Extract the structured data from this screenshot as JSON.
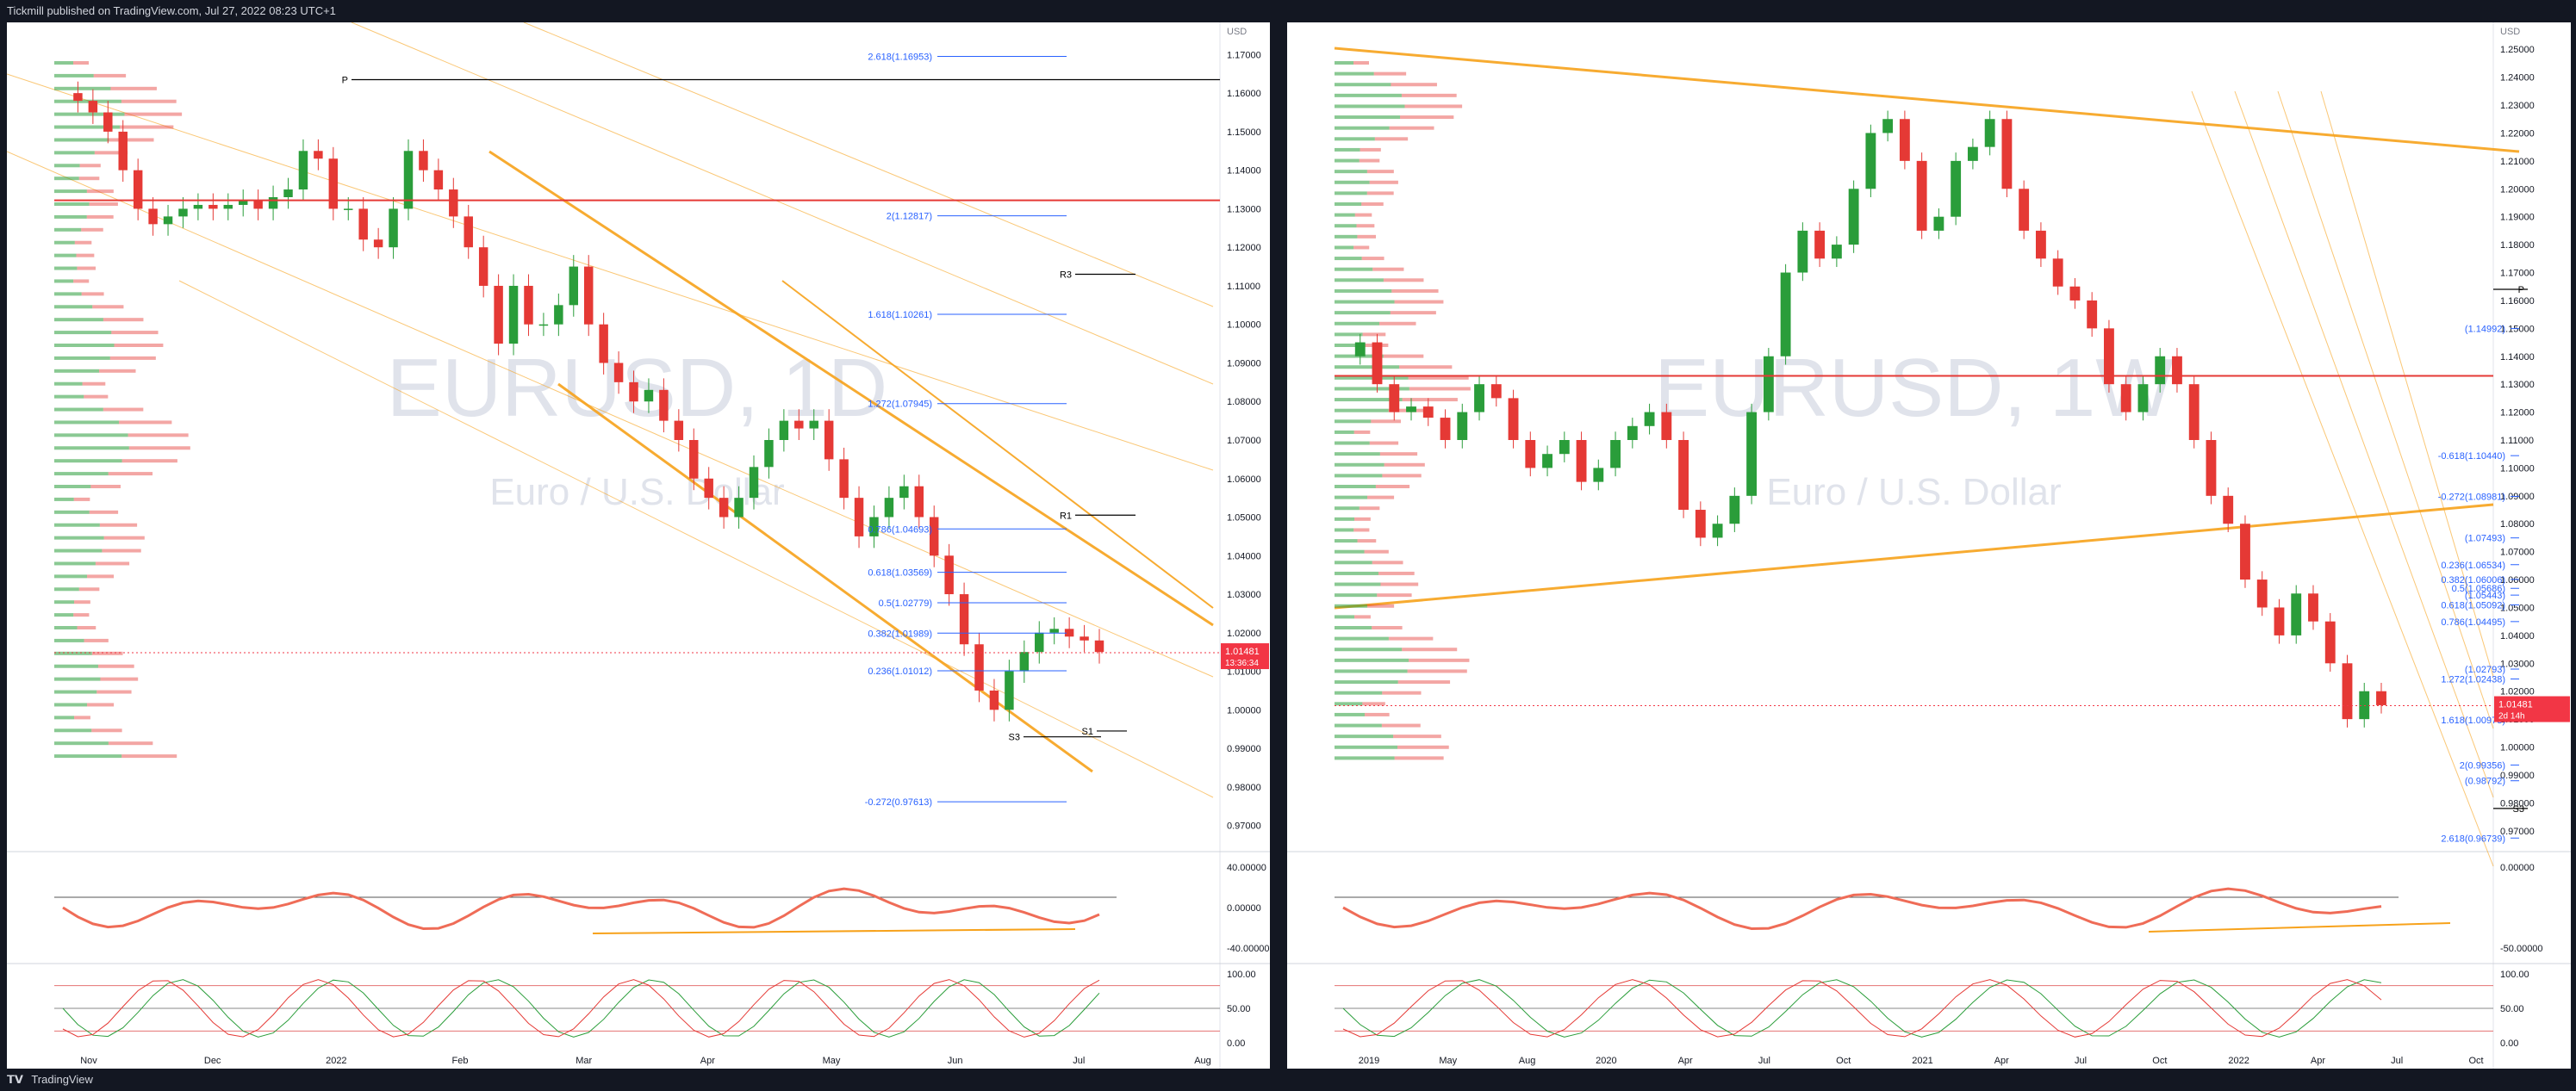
{
  "header": {
    "publish_text": "Tickmill published on TradingView.com, Jul 27, 2022 08:23 UTC+1"
  },
  "footer": {
    "logo_text": "TradingView"
  },
  "colors": {
    "frame": "#131722",
    "bull": "#2a9d3a",
    "bear": "#e53935",
    "fib_line": "#2962ff",
    "channel": "#f7a21b",
    "pivot": "#000000",
    "price_tag": "#f23645",
    "resistance_line": "#e53935"
  },
  "chart_data": [
    {
      "type": "line",
      "title": "EURUSD, 1D",
      "subtitle": "Euro / U.S. Dollar",
      "currency": "USD",
      "price_axis": [
        "1.17000",
        "1.16000",
        "1.15000",
        "1.14000",
        "1.13000",
        "1.12000",
        "1.11000",
        "1.10000",
        "1.09000",
        "1.08000",
        "1.07000",
        "1.06000",
        "1.05000",
        "1.04000",
        "1.03000",
        "1.02000",
        "1.01000",
        "1.00000",
        "0.99000",
        "0.98000",
        "0.97000"
      ],
      "ylim": [
        0.965,
        1.175
      ],
      "time_axis": [
        "Nov",
        "Dec",
        "2022",
        "Feb",
        "Mar",
        "Apr",
        "May",
        "Jun",
        "Jul",
        "Aug"
      ],
      "series": [
        {
          "values": [
            1.16,
            1.158,
            1.155,
            1.15,
            1.14,
            1.13,
            1.126,
            1.128,
            1.13,
            1.131,
            1.13,
            1.131,
            1.132,
            1.13,
            1.133,
            1.135,
            1.145,
            1.143,
            1.13,
            1.13,
            1.122,
            1.12,
            1.13,
            1.145,
            1.14,
            1.135,
            1.128,
            1.12,
            1.11,
            1.095,
            1.11,
            1.1,
            1.1,
            1.105,
            1.115,
            1.1,
            1.09,
            1.085,
            1.08,
            1.083,
            1.075,
            1.07,
            1.06,
            1.055,
            1.05,
            1.055,
            1.063,
            1.07,
            1.075,
            1.073,
            1.075,
            1.065,
            1.055,
            1.045,
            1.05,
            1.055,
            1.058,
            1.05,
            1.04,
            1.03,
            1.017,
            1.005,
            1.0,
            1.01,
            1.015,
            1.02,
            1.021,
            1.019,
            1.018,
            1.015
          ]
        }
      ],
      "current_price": "1.01481",
      "countdown": "13:36:34",
      "fib_levels": [
        {
          "label": "2.618(1.16953)",
          "value": 1.16953
        },
        {
          "label": "2(1.12817)",
          "value": 1.12817
        },
        {
          "label": "1.618(1.10261)",
          "value": 1.10261
        },
        {
          "label": "1.272(1.07945)",
          "value": 1.07945
        },
        {
          "label": "0.786(1.04693)",
          "value": 1.04693
        },
        {
          "label": "0.618(1.03569)",
          "value": 1.03569
        },
        {
          "label": "0.5(1.02779)",
          "value": 1.02779
        },
        {
          "label": "0.382(1.01989)",
          "value": 1.01989
        },
        {
          "label": "0.236(1.01012)",
          "value": 1.01012
        },
        {
          "label": "-0.272(0.97613)",
          "value": 0.97613
        }
      ],
      "pivots": [
        {
          "label": "P",
          "value": 1.1635
        },
        {
          "label": "R3",
          "value": 1.113
        },
        {
          "label": "R1",
          "value": 1.0505
        },
        {
          "label": "S3",
          "value": 0.993
        },
        {
          "label": "S1",
          "value": 0.9945
        }
      ],
      "rsi_axis": [
        "40.00000",
        "0.00000",
        "-40.00000"
      ],
      "stoch_axis": [
        "100.00",
        "50.00",
        "0.00"
      ]
    },
    {
      "type": "line",
      "title": "EURUSD, 1W",
      "subtitle": "Euro / U.S. Dollar",
      "currency": "USD",
      "price_axis": [
        "1.25000",
        "1.24000",
        "1.23000",
        "1.22000",
        "1.21000",
        "1.20000",
        "1.19000",
        "1.18000",
        "1.17000",
        "1.16000",
        "1.15000",
        "1.14000",
        "1.13000",
        "1.12000",
        "1.11000",
        "1.10000",
        "1.09000",
        "1.08000",
        "1.07000",
        "1.06000",
        "1.05000",
        "1.04000",
        "1.03000",
        "1.02000",
        "1.01000",
        "1.00000",
        "0.99000",
        "0.98000",
        "0.97000"
      ],
      "ylim": [
        0.965,
        1.255
      ],
      "time_axis": [
        "2019",
        "May",
        "Aug",
        "2020",
        "Apr",
        "Jul",
        "Oct",
        "2021",
        "Apr",
        "Jul",
        "Oct",
        "2022",
        "Apr",
        "Jul",
        "Oct"
      ],
      "series": [
        {
          "values": [
            1.14,
            1.145,
            1.13,
            1.12,
            1.122,
            1.118,
            1.11,
            1.12,
            1.13,
            1.125,
            1.11,
            1.1,
            1.105,
            1.11,
            1.095,
            1.1,
            1.11,
            1.115,
            1.12,
            1.11,
            1.085,
            1.075,
            1.08,
            1.09,
            1.12,
            1.14,
            1.17,
            1.185,
            1.175,
            1.18,
            1.2,
            1.22,
            1.225,
            1.21,
            1.185,
            1.19,
            1.21,
            1.215,
            1.225,
            1.2,
            1.185,
            1.175,
            1.165,
            1.16,
            1.15,
            1.13,
            1.12,
            1.13,
            1.14,
            1.13,
            1.11,
            1.09,
            1.08,
            1.06,
            1.05,
            1.04,
            1.055,
            1.045,
            1.03,
            1.01,
            1.02,
            1.015
          ]
        }
      ],
      "current_price": "1.01481",
      "countdown": "2d 14h",
      "fib_levels": [
        {
          "label": "(1.14992)",
          "value": 1.14992
        },
        {
          "label": "-0.618(1.10440)",
          "value": 1.1044
        },
        {
          "label": "-0.272(1.08981)",
          "value": 1.08981
        },
        {
          "label": "(1.07493)",
          "value": 1.07493
        },
        {
          "label": "0.236(1.06534)",
          "value": 1.06534
        },
        {
          "label": "0.382(1.06006)",
          "value": 1.06006
        },
        {
          "label": "0.5(1.05686)",
          "value": 1.05686
        },
        {
          "label": "(1.05443)",
          "value": 1.05443
        },
        {
          "label": "0.618(1.05092)",
          "value": 1.05092
        },
        {
          "label": "0.786(1.04495)",
          "value": 1.04495
        },
        {
          "label": "(1.02793)",
          "value": 1.02793
        },
        {
          "label": "1.272(1.02438)",
          "value": 1.02438
        },
        {
          "label": "1.618(1.00973)",
          "value": 1.00973
        },
        {
          "label": "2(0.99356)",
          "value": 0.99356
        },
        {
          "label": "(0.98792)",
          "value": 0.98792
        },
        {
          "label": "2.618(0.96739)",
          "value": 0.96739
        }
      ],
      "pivots": [
        {
          "label": "P",
          "value": 1.164
        },
        {
          "label": "S3",
          "value": 0.978
        }
      ],
      "rsi_axis": [
        "0.00000",
        "-50.00000"
      ],
      "stoch_axis": [
        "100.00",
        "50.00",
        "0.00"
      ]
    }
  ]
}
